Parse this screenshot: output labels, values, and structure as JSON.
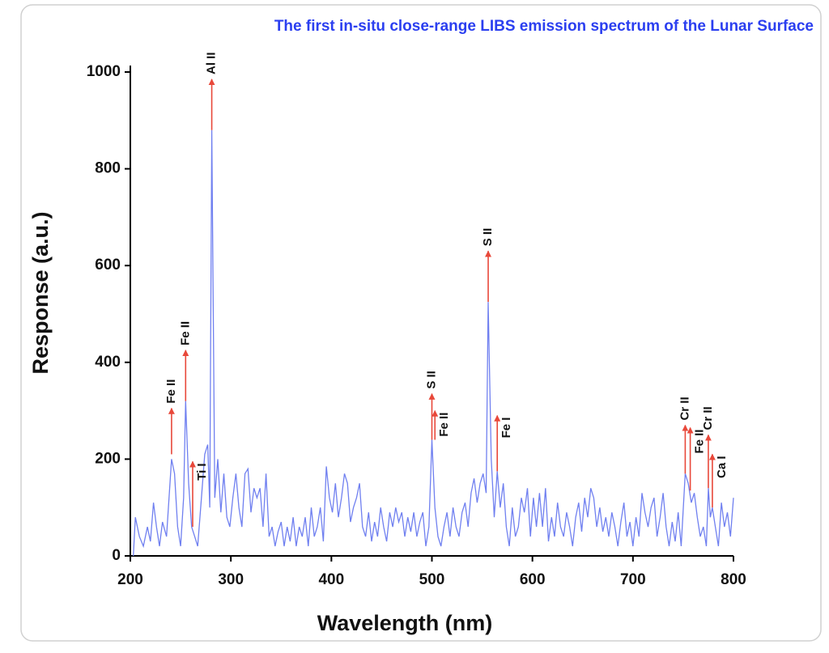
{
  "chart_data": {
    "type": "line",
    "title": "The first in-situ close-range LIBS emission spectrum of the Lunar Surface",
    "x_label": "Wavelength (nm)",
    "y_label": "Response (a.u.)",
    "xlim": [
      200,
      800
    ],
    "ylim": [
      0,
      1000
    ],
    "xticks": [
      200,
      300,
      400,
      500,
      600,
      700,
      800
    ],
    "yticks": [
      0,
      200,
      400,
      600,
      800,
      1000
    ],
    "color": "#7080f0",
    "annotation_color": "#e8483a",
    "x": [
      203,
      205,
      209,
      213,
      217,
      220,
      223,
      226,
      229,
      232,
      236,
      241,
      244,
      247,
      250,
      253,
      255,
      258,
      261,
      264,
      267,
      270,
      274,
      277,
      279,
      281,
      284,
      287,
      290,
      293,
      296,
      299,
      302,
      305,
      308,
      311,
      314,
      317,
      320,
      323,
      326,
      329,
      332,
      335,
      338,
      341,
      344,
      347,
      350,
      353,
      356,
      359,
      362,
      365,
      368,
      371,
      374,
      377,
      380,
      383,
      386,
      389,
      392,
      395,
      398,
      401,
      404,
      407,
      410,
      413,
      416,
      419,
      422,
      425,
      428,
      431,
      434,
      437,
      440,
      443,
      446,
      449,
      452,
      455,
      458,
      461,
      464,
      467,
      470,
      473,
      476,
      479,
      482,
      485,
      488,
      491,
      494,
      497,
      500,
      503,
      506,
      509,
      512,
      515,
      518,
      521,
      524,
      527,
      530,
      533,
      536,
      539,
      542,
      545,
      548,
      551,
      554,
      556,
      559,
      562,
      565,
      568,
      571,
      574,
      577,
      580,
      583,
      586,
      589,
      592,
      595,
      598,
      601,
      604,
      607,
      610,
      613,
      616,
      619,
      622,
      625,
      628,
      631,
      634,
      637,
      640,
      643,
      646,
      649,
      652,
      655,
      658,
      661,
      664,
      667,
      670,
      673,
      676,
      679,
      682,
      685,
      688,
      691,
      694,
      697,
      700,
      703,
      706,
      709,
      712,
      715,
      718,
      721,
      724,
      727,
      730,
      733,
      736,
      739,
      742,
      745,
      748,
      752,
      755,
      758,
      761,
      764,
      767,
      770,
      773,
      775,
      777,
      779,
      782,
      785,
      788,
      791,
      794,
      797,
      800
    ],
    "values": [
      0,
      80,
      40,
      20,
      60,
      30,
      110,
      60,
      20,
      70,
      40,
      200,
      170,
      60,
      20,
      120,
      320,
      150,
      60,
      40,
      20,
      100,
      210,
      230,
      100,
      880,
      120,
      200,
      90,
      170,
      80,
      60,
      120,
      170,
      100,
      60,
      170,
      180,
      90,
      140,
      120,
      140,
      60,
      170,
      40,
      60,
      20,
      50,
      70,
      20,
      60,
      30,
      80,
      20,
      60,
      40,
      80,
      20,
      100,
      40,
      60,
      100,
      30,
      185,
      120,
      90,
      150,
      80,
      120,
      170,
      150,
      70,
      100,
      120,
      150,
      60,
      40,
      90,
      30,
      70,
      40,
      100,
      60,
      30,
      90,
      60,
      100,
      70,
      90,
      40,
      80,
      50,
      90,
      40,
      70,
      90,
      20,
      60,
      240,
      100,
      40,
      20,
      60,
      90,
      40,
      100,
      60,
      40,
      90,
      110,
      60,
      130,
      160,
      110,
      150,
      170,
      130,
      525,
      200,
      80,
      175,
      100,
      150,
      60,
      20,
      100,
      40,
      60,
      120,
      90,
      140,
      40,
      120,
      60,
      130,
      60,
      140,
      30,
      80,
      40,
      110,
      60,
      40,
      90,
      60,
      20,
      80,
      110,
      50,
      120,
      80,
      140,
      120,
      60,
      100,
      50,
      80,
      40,
      90,
      60,
      20,
      70,
      110,
      40,
      70,
      20,
      80,
      40,
      130,
      90,
      60,
      100,
      120,
      40,
      80,
      130,
      60,
      20,
      70,
      30,
      90,
      20,
      170,
      150,
      110,
      130,
      80,
      40,
      60,
      20,
      140,
      80,
      100,
      60,
      20,
      110,
      60,
      90,
      40,
      120
    ],
    "annotations": [
      {
        "text": "Fe II",
        "x": 241,
        "y_start": 210,
        "y_end": 305
      },
      {
        "text": "Fe II",
        "x": 255,
        "y_start": 320,
        "y_end": 425
      },
      {
        "text": "Ti I",
        "x": 262,
        "y_start": 60,
        "y_end": 195
      },
      {
        "text": "Al II",
        "x": 281,
        "y_start": 880,
        "y_end": 985
      },
      {
        "text": "S II",
        "x": 500,
        "y_start": 240,
        "y_end": 335
      },
      {
        "text": "Fe II",
        "x": 503,
        "y_start": 240,
        "y_end": 300
      },
      {
        "text": "S II",
        "x": 556,
        "y_start": 525,
        "y_end": 630
      },
      {
        "text": "Fe I",
        "x": 565,
        "y_start": 175,
        "y_end": 290
      },
      {
        "text": "Cr II",
        "x": 752,
        "y_start": 170,
        "y_end": 270
      },
      {
        "text": "Fe II",
        "x": 757,
        "y_start": 135,
        "y_end": 265
      },
      {
        "text": "Cr II",
        "x": 775,
        "y_start": 140,
        "y_end": 250
      },
      {
        "text": "Ca I",
        "x": 779,
        "y_start": 100,
        "y_end": 210
      }
    ]
  }
}
